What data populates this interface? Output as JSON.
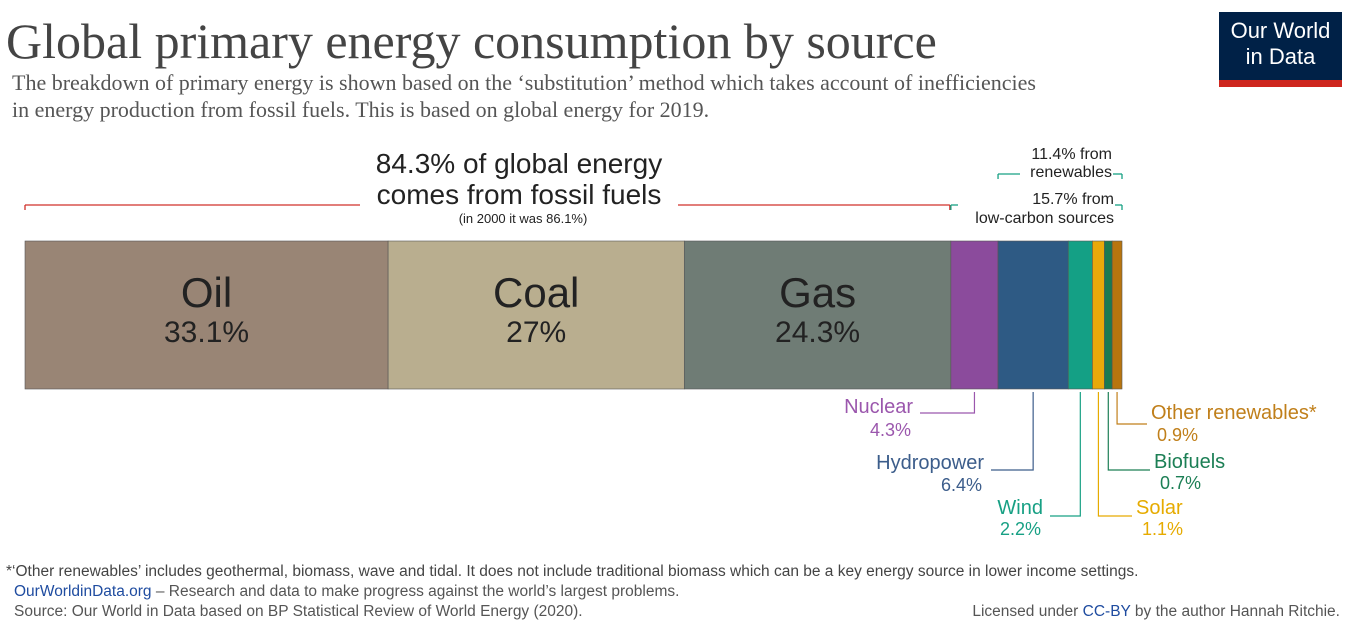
{
  "chart_data": {
    "type": "stacked-bar",
    "title": "Global primary energy consumption by source",
    "subtitle": [
      "The breakdown of primary energy is shown based on the ‘substitution’ method which takes account of inefficiencies",
      "in energy production from fossil fuels. This is based on global energy for 2019."
    ],
    "logo": [
      "Our World",
      "in Data"
    ],
    "categories": [
      "Oil",
      "Coal",
      "Gas",
      "Nuclear",
      "Hydropower",
      "Wind",
      "Solar",
      "Biofuels",
      "Other renewables*"
    ],
    "values": [
      33.1,
      27,
      24.3,
      4.3,
      6.4,
      2.2,
      1.1,
      0.7,
      0.9
    ],
    "value_labels": [
      "33.1%",
      "27%",
      "24.3%",
      "4.3%",
      "6.4%",
      "2.2%",
      "1.1%",
      "0.7%",
      "0.9%"
    ],
    "colors": [
      "#998575",
      "#b9ae8f",
      "#6f7c75",
      "#8b4b9c",
      "#2e5a84",
      "#14a085",
      "#e9a90a",
      "#1a7a52",
      "#b8750f"
    ],
    "label_colors": [
      "#222222",
      "#222222",
      "#222222",
      "#9b57ad",
      "#3c5d8b",
      "#17a084",
      "#e6ab00",
      "#1c7f55",
      "#c07f1a"
    ],
    "annotations": [
      {
        "lines": [
          "84.3% of global energy",
          "comes from fossil fuels"
        ],
        "note": "(in 2000 it was 86.1%)",
        "color": "#d0302a"
      },
      {
        "lines": [
          "11.4% from",
          "renewables"
        ],
        "color": "#17a084"
      },
      {
        "lines": [
          "15.7% from",
          "low-carbon sources"
        ],
        "color": "#17a084"
      }
    ],
    "footnote": "*‘Other renewables’ includes geothermal, biomass, wave and tidal. It does not include traditional biomass which can be a key energy source in lower income settings.",
    "site": "OurWorldinData.org",
    "tagline": " – Research and data to make progress against the world’s largest problems.",
    "source": "Source: Our World in Data based on BP Statistical Review of World Energy (2020).",
    "license": [
      "Licensed under ",
      "CC-BY",
      " by the author Hannah Ritchie."
    ]
  }
}
